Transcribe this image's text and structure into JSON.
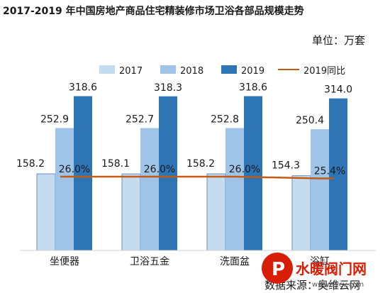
{
  "chart_data": {
    "type": "bar",
    "title": "2017-2019 年中国房地产商品住宅精装修市场卫浴各部品规模走势",
    "unit_label": "单位：万套",
    "categories": [
      "坐便器",
      "卫浴五金",
      "洗面盆",
      "浴缸"
    ],
    "series": [
      {
        "name": "2017",
        "values": [
          158.2,
          158.1,
          158.2,
          154.3
        ],
        "color": "#c5dcf0"
      },
      {
        "name": "2018",
        "values": [
          252.9,
          252.7,
          252.8,
          250.4
        ],
        "color": "#9fc4e8"
      },
      {
        "name": "2019",
        "values": [
          318.6,
          318.3,
          318.6,
          314.0
        ],
        "color": "#2e75b6"
      }
    ],
    "line_series": {
      "name": "2019同比",
      "values": [
        26.0,
        26.0,
        26.0,
        25.4
      ],
      "labels": [
        "26.0%",
        "26.0%",
        "26.0%",
        "25.4%"
      ],
      "color": "#c55a11"
    },
    "bar_labels": [
      [
        "158.2",
        "158.1",
        "158.2",
        "154.3"
      ],
      [
        "252.9",
        "252.7",
        "252.8",
        "250.4"
      ],
      [
        "318.6",
        "318.3",
        "318.6",
        "314.0"
      ]
    ],
    "ylim": [
      0,
      400
    ],
    "grid": false,
    "legend_position": "top"
  },
  "source_text": "数据来源：奥维云网",
  "watermark": {
    "brand": "水暖阀门网",
    "url": "www.svcv.com",
    "color": "#d81e06"
  }
}
